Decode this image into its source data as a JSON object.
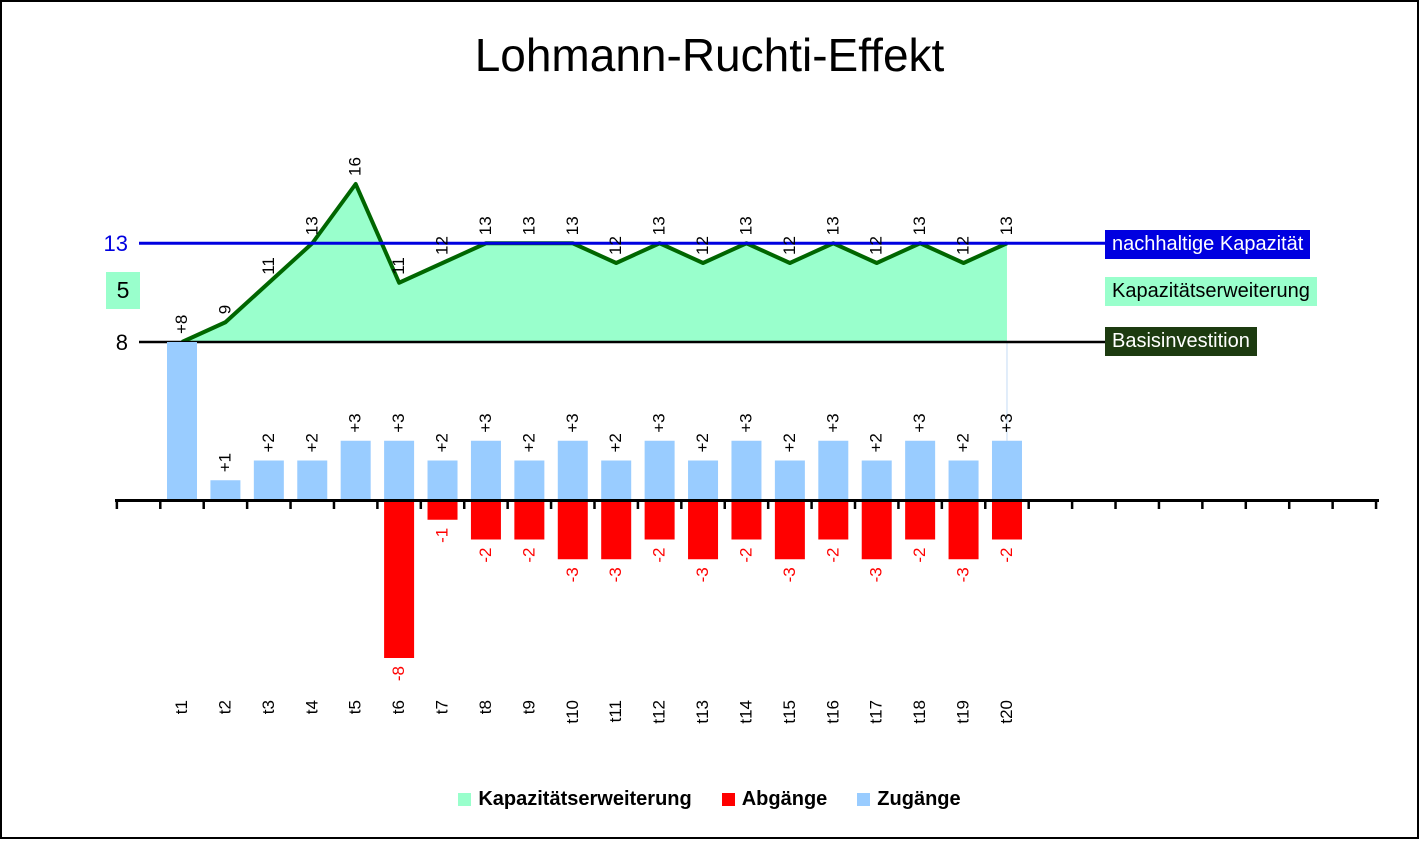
{
  "title": "Lohmann-Ruchti-Effekt",
  "left_axis": {
    "sustainable_capacity": "13",
    "expansion_amount": "5",
    "base_investment": "8"
  },
  "right_labels": {
    "sustainable_capacity": "nachhaltige Kapazität",
    "expansion": "Kapazitätserweiterung",
    "base": "Basisinvestition"
  },
  "legend": {
    "items": [
      {
        "name": "expansion",
        "label": "Kapazitätserweiterung",
        "color": "#99FFCC"
      },
      {
        "name": "disposals",
        "label": "Abgänge",
        "color": "#FF0000"
      },
      {
        "name": "additions",
        "label": "Zugänge",
        "color": "#99CCFF"
      }
    ]
  },
  "colors": {
    "area_fill": "#99FFCC",
    "area_line": "#006600",
    "sustainable_line": "#0000E0",
    "base_line": "#000000",
    "additions_bar": "#99CCFF",
    "disposals_bar": "#FF0000",
    "label_text": "#000000"
  },
  "chart_data": {
    "type": "area+bar combo",
    "title": "Lohmann-Ruchti-Effekt",
    "categories": [
      "t1",
      "t2",
      "t3",
      "t4",
      "t5",
      "t6",
      "t7",
      "t8",
      "t9",
      "t10",
      "t11",
      "t12",
      "t13",
      "t14",
      "t15",
      "t16",
      "t17",
      "t18",
      "t19",
      "t20"
    ],
    "series": [
      {
        "name": "Kapazitätserweiterung",
        "type": "area",
        "color": "#99FFCC",
        "line_color": "#006600",
        "values": [
          8,
          9,
          11,
          13,
          16,
          11,
          12,
          13,
          13,
          13,
          12,
          13,
          12,
          13,
          12,
          13,
          12,
          13,
          12,
          13
        ],
        "labels": [
          "",
          "9",
          "11",
          "13",
          "16",
          "11",
          "12",
          "13",
          "13",
          "13",
          "12",
          "13",
          "12",
          "13",
          "12",
          "13",
          "12",
          "13",
          "12",
          "13"
        ]
      },
      {
        "name": "Zugänge",
        "type": "bar",
        "color": "#99CCFF",
        "values": [
          8,
          1,
          2,
          2,
          3,
          3,
          2,
          3,
          2,
          3,
          2,
          3,
          2,
          3,
          2,
          3,
          2,
          3,
          2,
          3
        ],
        "labels": [
          "+8",
          "+1",
          "+2",
          "+2",
          "+3",
          "+3",
          "+2",
          "+3",
          "+2",
          "+3",
          "+2",
          "+3",
          "+2",
          "+3",
          "+2",
          "+3",
          "+2",
          "+3",
          "+2",
          "+3"
        ]
      },
      {
        "name": "Abgänge",
        "type": "bar",
        "color": "#FF0000",
        "values": [
          0,
          0,
          0,
          0,
          0,
          -8,
          -1,
          -2,
          -2,
          -3,
          -3,
          -2,
          -3,
          -2,
          -3,
          -2,
          -3,
          -2,
          -3,
          -2
        ],
        "labels": [
          "",
          "",
          "",
          "",
          "",
          "-8",
          "-1",
          "-2",
          "-2",
          "-3",
          "-3",
          "-2",
          "-3",
          "-2",
          "-3",
          "-2",
          "-3",
          "-2",
          "-3",
          "-2"
        ]
      }
    ],
    "reference_lines": [
      {
        "label": "nachhaltige Kapazität",
        "value": 13,
        "color": "#0000E0"
      },
      {
        "label": "Basisinvestition",
        "value": 8,
        "color": "#000000"
      }
    ],
    "baseline_value": 8,
    "ylim": [
      -8,
      16
    ],
    "grid": false,
    "legend_position": "bottom"
  }
}
